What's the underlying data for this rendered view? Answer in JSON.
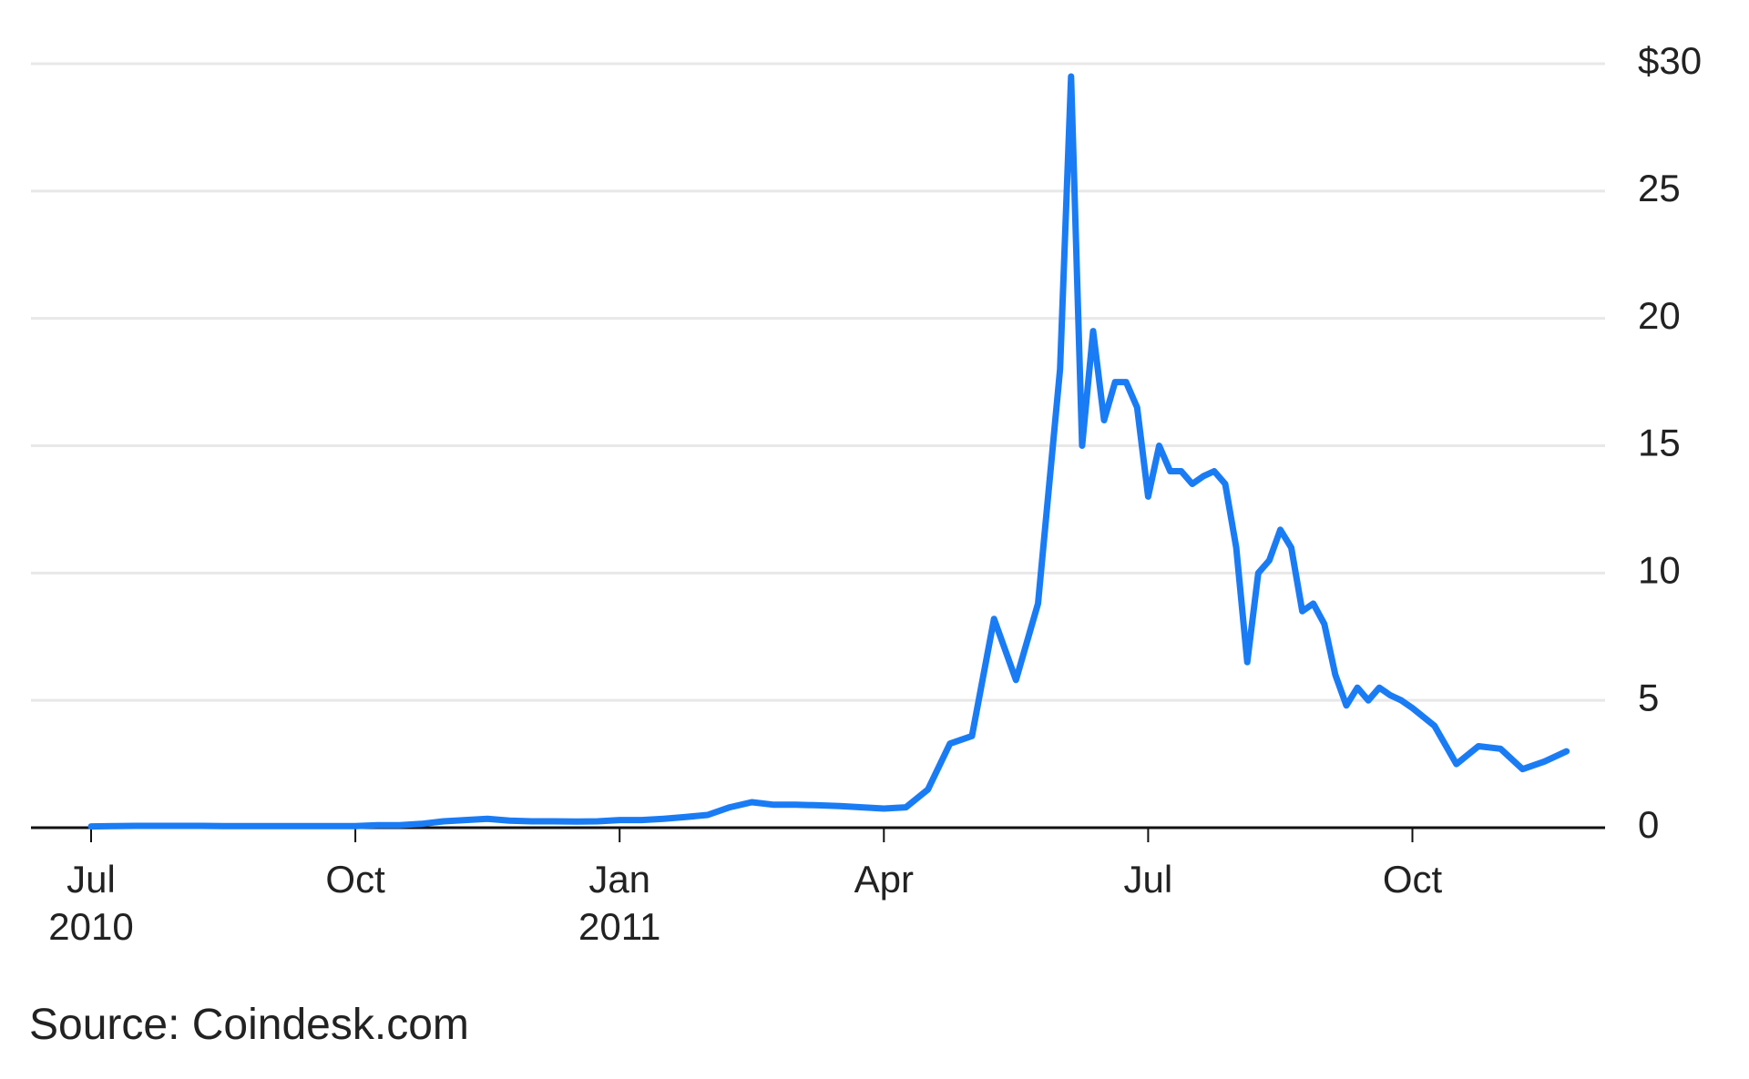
{
  "chart_data": {
    "type": "line",
    "source": "Source: Coindesk.com",
    "x": [
      "2010-07",
      "2010-07",
      "2010-07",
      "2010-07",
      "2010-08",
      "2010-08",
      "2010-08",
      "2010-08",
      "2010-09",
      "2010-09",
      "2010-09",
      "2010-09",
      "2010-10",
      "2010-10",
      "2010-10",
      "2010-10",
      "2010-11",
      "2010-11",
      "2010-11",
      "2010-11",
      "2010-12",
      "2010-12",
      "2010-12",
      "2010-12",
      "2011-01",
      "2011-01",
      "2011-01",
      "2011-01",
      "2011-02",
      "2011-02",
      "2011-02",
      "2011-02",
      "2011-03",
      "2011-03",
      "2011-03",
      "2011-03",
      "2011-04",
      "2011-04",
      "2011-04",
      "2011-04",
      "2011-05",
      "2011-05",
      "2011-05",
      "2011-05",
      "2011-06",
      "2011-06",
      "2011-06",
      "2011-06",
      "2011-06",
      "2011-06",
      "2011-06",
      "2011-06",
      "2011-07",
      "2011-07",
      "2011-07",
      "2011-07",
      "2011-07",
      "2011-07",
      "2011-07",
      "2011-07",
      "2011-08",
      "2011-08",
      "2011-08",
      "2011-08",
      "2011-08",
      "2011-08",
      "2011-08",
      "2011-08",
      "2011-09",
      "2011-09",
      "2011-09",
      "2011-09",
      "2011-09",
      "2011-09",
      "2011-09",
      "2011-09",
      "2011-10",
      "2011-10",
      "2011-10",
      "2011-10",
      "2011-11",
      "2011-11",
      "2011-11",
      "2011-11"
    ],
    "series": [
      {
        "color": "#1a7cf5",
        "values": [
          0.05,
          0.06,
          0.07,
          0.07,
          0.07,
          0.07,
          0.06,
          0.06,
          0.06,
          0.06,
          0.06,
          0.06,
          0.06,
          0.1,
          0.1,
          0.15,
          0.25,
          0.3,
          0.35,
          0.28,
          0.25,
          0.25,
          0.24,
          0.25,
          0.3,
          0.3,
          0.35,
          0.42,
          0.5,
          0.8,
          1.0,
          0.9,
          0.9,
          0.88,
          0.85,
          0.8,
          0.75,
          0.8,
          1.5,
          3.3,
          3.6,
          8.2,
          5.8,
          8.8,
          18,
          29.5,
          15,
          19.5,
          16,
          17.5,
          17.5,
          16.5,
          13,
          15,
          14,
          14,
          13.5,
          13.8,
          14,
          13.5,
          11,
          6.5,
          10,
          10.5,
          11.7,
          11,
          8.5,
          8.8,
          8,
          6,
          4.8,
          5.5,
          5,
          5.5,
          5.2,
          5,
          4.7,
          4,
          2.5,
          3.2,
          3.1,
          2.3,
          2.6,
          3.0
        ]
      }
    ],
    "xticks": [
      {
        "value": "2010-07",
        "label": "Jul\n2010"
      },
      {
        "value": "2010-10",
        "label": "Oct"
      },
      {
        "value": "2011-01",
        "label": "Jan\n2011"
      },
      {
        "value": "2011-04",
        "label": "Apr"
      },
      {
        "value": "2011-07",
        "label": "Jul"
      },
      {
        "value": "2011-10",
        "label": "Oct"
      }
    ],
    "ylim": [
      0,
      30
    ],
    "yticks": [
      0,
      5,
      10,
      15,
      20,
      25,
      {
        "value": 30,
        "label": "$30"
      }
    ],
    "grid": true
  }
}
